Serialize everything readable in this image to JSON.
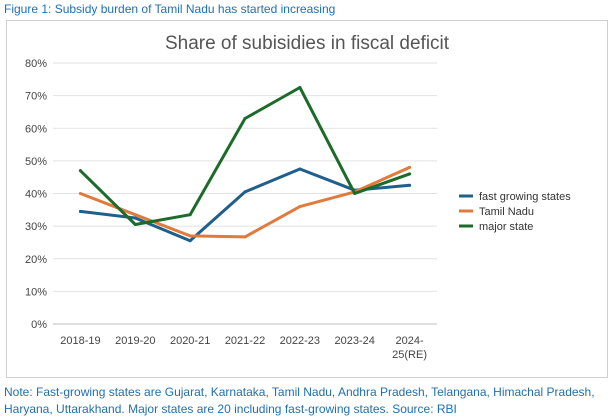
{
  "caption": "Figure 1: Subsidy burden of Tamil Nadu has started increasing",
  "note": "Note: Fast-growing states are Gujarat, Karnataka, Tamil Nadu, Andhra Pradesh, Telangana, Himachal Pradesh, Haryana, Uttarakhand. Major states are 20 including fast-growing states. Source: RBI",
  "chart_data": {
    "type": "line",
    "title": "Share of subisidies in fiscal deficit",
    "categories": [
      "2018-19",
      "2019-20",
      "2020-21",
      "2021-22",
      "2022-23",
      "2023-24",
      "2024-25(RE)"
    ],
    "category_lines": [
      [
        "2018-19"
      ],
      [
        "2019-20"
      ],
      [
        "2020-21"
      ],
      [
        "2021-22"
      ],
      [
        "2022-23"
      ],
      [
        "2023-24"
      ],
      [
        "2024-",
        "25(RE)"
      ]
    ],
    "yticks": [
      "0%",
      "10%",
      "20%",
      "30%",
      "40%",
      "50%",
      "60%",
      "70%",
      "80%"
    ],
    "ylim": [
      0,
      80
    ],
    "grid": true,
    "legend_position": "right",
    "series": [
      {
        "name": "fast growing states",
        "color": "#1f5f8b",
        "values": [
          34.5,
          32.5,
          25.5,
          40.5,
          47.5,
          41,
          42.5
        ]
      },
      {
        "name": "Tamil Nadu",
        "color": "#e07b3c",
        "values": [
          40,
          33.5,
          27,
          26.7,
          36,
          40.5,
          48
        ]
      },
      {
        "name": "major state",
        "color": "#1d6b2b",
        "values": [
          47,
          30.5,
          33.5,
          63,
          72.5,
          40,
          46
        ]
      }
    ]
  }
}
